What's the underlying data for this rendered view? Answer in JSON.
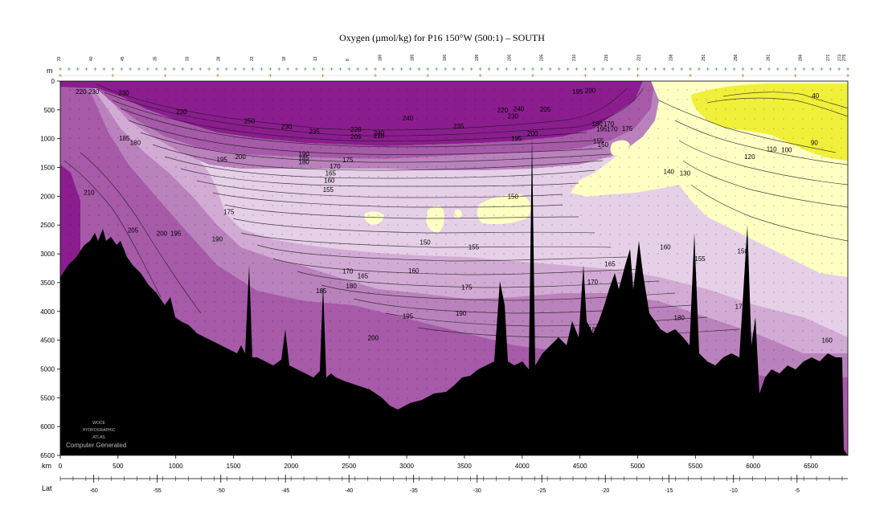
{
  "chart_data": {
    "type": "heatmap",
    "title": "Oxygen (µmol/kg) for P16 150°W (500:1) – SOUTH",
    "depth_unit": "m",
    "distance_unit": "km",
    "lat_label": "Lat",
    "depth_range": [
      0,
      6500
    ],
    "distance_range": [
      0,
      6820
    ],
    "depth_ticks": [
      0,
      500,
      1000,
      1500,
      2000,
      2500,
      3000,
      3500,
      4000,
      4500,
      5000,
      5500,
      6000,
      6500
    ],
    "distance_ticks": [
      0,
      500,
      1000,
      1500,
      2000,
      2500,
      3000,
      3500,
      4000,
      4500,
      5000,
      5500,
      6000,
      6500
    ],
    "lat_ticks": [
      {
        "km": 290,
        "label": "-60"
      },
      {
        "km": 840,
        "label": "-55"
      },
      {
        "km": 1390,
        "label": "-50"
      },
      {
        "km": 1950,
        "label": "-45"
      },
      {
        "km": 2500,
        "label": "-40"
      },
      {
        "km": 3060,
        "label": "-35"
      },
      {
        "km": 3610,
        "label": "-30"
      },
      {
        "km": 4170,
        "label": "-25"
      },
      {
        "km": 4720,
        "label": "-20"
      },
      {
        "km": 5270,
        "label": "-15"
      },
      {
        "km": 5830,
        "label": "-10"
      },
      {
        "km": 6380,
        "label": "-5"
      }
    ],
    "station_labels": [
      {
        "km": 0,
        "label": "33"
      },
      {
        "km": 280,
        "label": "40"
      },
      {
        "km": 550,
        "label": "45"
      },
      {
        "km": 830,
        "label": "35"
      },
      {
        "km": 1110,
        "label": "33"
      },
      {
        "km": 1380,
        "label": "28"
      },
      {
        "km": 1670,
        "label": "23"
      },
      {
        "km": 1950,
        "label": "18"
      },
      {
        "km": 2220,
        "label": "13"
      },
      {
        "km": 2500,
        "label": "8"
      },
      {
        "km": 2780,
        "label": "180"
      },
      {
        "km": 3060,
        "label": "185"
      },
      {
        "km": 3340,
        "label": "190"
      },
      {
        "km": 3620,
        "label": "195"
      },
      {
        "km": 3900,
        "label": "200"
      },
      {
        "km": 4180,
        "label": "205"
      },
      {
        "km": 4460,
        "label": "210"
      },
      {
        "km": 4740,
        "label": "215"
      },
      {
        "km": 5020,
        "label": "221"
      },
      {
        "km": 5300,
        "label": "238"
      },
      {
        "km": 5580,
        "label": "251"
      },
      {
        "km": 5860,
        "label": "256"
      },
      {
        "km": 6140,
        "label": "261"
      },
      {
        "km": 6420,
        "label": "266"
      },
      {
        "km": 6660,
        "label": "271"
      },
      {
        "km": 6760,
        "label": "273"
      },
      {
        "km": 6800,
        "label": "275"
      }
    ],
    "contour_labels": [
      {
        "km": 180,
        "depth": 180,
        "value": "220"
      },
      {
        "km": 290,
        "depth": 180,
        "value": "230"
      },
      {
        "km": 550,
        "depth": 200,
        "value": "230"
      },
      {
        "km": 1050,
        "depth": 530,
        "value": "230"
      },
      {
        "km": 1640,
        "depth": 690,
        "value": "250"
      },
      {
        "km": 1960,
        "depth": 790,
        "value": "230"
      },
      {
        "km": 2200,
        "depth": 870,
        "value": "235"
      },
      {
        "km": 2560,
        "depth": 840,
        "value": "220"
      },
      {
        "km": 2760,
        "depth": 900,
        "value": "240"
      },
      {
        "km": 2560,
        "depth": 960,
        "value": "205"
      },
      {
        "km": 2760,
        "depth": 950,
        "value": "210"
      },
      {
        "km": 3010,
        "depth": 640,
        "value": "240"
      },
      {
        "km": 3450,
        "depth": 780,
        "value": "235"
      },
      {
        "km": 3830,
        "depth": 500,
        "value": "220"
      },
      {
        "km": 3970,
        "depth": 480,
        "value": "240"
      },
      {
        "km": 3920,
        "depth": 610,
        "value": "230"
      },
      {
        "km": 4200,
        "depth": 490,
        "value": "205"
      },
      {
        "km": 4480,
        "depth": 180,
        "value": "195"
      },
      {
        "km": 4590,
        "depth": 160,
        "value": "200"
      },
      {
        "km": 4090,
        "depth": 910,
        "value": "200"
      },
      {
        "km": 3950,
        "depth": 1000,
        "value": "195"
      },
      {
        "km": 4650,
        "depth": 740,
        "value": "180"
      },
      {
        "km": 4690,
        "depth": 830,
        "value": "195"
      },
      {
        "km": 4750,
        "depth": 740,
        "value": "170"
      },
      {
        "km": 4780,
        "depth": 830,
        "value": "170"
      },
      {
        "km": 4910,
        "depth": 820,
        "value": "175"
      },
      {
        "km": 4660,
        "depth": 1040,
        "value": "155"
      },
      {
        "km": 4700,
        "depth": 1100,
        "value": "150"
      },
      {
        "km": 555,
        "depth": 990,
        "value": "185"
      },
      {
        "km": 650,
        "depth": 1070,
        "value": "180"
      },
      {
        "km": 1560,
        "depth": 1310,
        "value": "200"
      },
      {
        "km": 1400,
        "depth": 1360,
        "value": "195"
      },
      {
        "km": 2110,
        "depth": 1260,
        "value": "190"
      },
      {
        "km": 2110,
        "depth": 1330,
        "value": "185"
      },
      {
        "km": 2110,
        "depth": 1400,
        "value": "180"
      },
      {
        "km": 2490,
        "depth": 1370,
        "value": "175"
      },
      {
        "km": 2380,
        "depth": 1480,
        "value": "170"
      },
      {
        "km": 2340,
        "depth": 1600,
        "value": "165"
      },
      {
        "km": 2330,
        "depth": 1720,
        "value": "160"
      },
      {
        "km": 2320,
        "depth": 1880,
        "value": "155"
      },
      {
        "km": 250,
        "depth": 1930,
        "value": "210"
      },
      {
        "km": 630,
        "depth": 2590,
        "value": "205"
      },
      {
        "km": 880,
        "depth": 2640,
        "value": "200"
      },
      {
        "km": 1000,
        "depth": 2640,
        "value": "195"
      },
      {
        "km": 1360,
        "depth": 2740,
        "value": "190"
      },
      {
        "km": 1460,
        "depth": 2270,
        "value": "175"
      },
      {
        "km": 3160,
        "depth": 2800,
        "value": "150"
      },
      {
        "km": 3580,
        "depth": 2880,
        "value": "155"
      },
      {
        "km": 3920,
        "depth": 2000,
        "value": "150"
      },
      {
        "km": 3060,
        "depth": 3290,
        "value": "160"
      },
      {
        "km": 2490,
        "depth": 3300,
        "value": "170"
      },
      {
        "km": 2620,
        "depth": 3380,
        "value": "165"
      },
      {
        "km": 2520,
        "depth": 3560,
        "value": "180"
      },
      {
        "km": 2260,
        "depth": 3640,
        "value": "185"
      },
      {
        "km": 3520,
        "depth": 3580,
        "value": "175"
      },
      {
        "km": 3010,
        "depth": 4080,
        "value": "195"
      },
      {
        "km": 3470,
        "depth": 4030,
        "value": "190"
      },
      {
        "km": 2710,
        "depth": 4460,
        "value": "200"
      },
      {
        "km": 4760,
        "depth": 3170,
        "value": "165"
      },
      {
        "km": 4610,
        "depth": 3490,
        "value": "170"
      },
      {
        "km": 5240,
        "depth": 2880,
        "value": "160"
      },
      {
        "km": 5540,
        "depth": 3080,
        "value": "155"
      },
      {
        "km": 5910,
        "depth": 2950,
        "value": "150"
      },
      {
        "km": 5270,
        "depth": 1570,
        "value": "140"
      },
      {
        "km": 5410,
        "depth": 1600,
        "value": "130"
      },
      {
        "km": 5970,
        "depth": 1310,
        "value": "120"
      },
      {
        "km": 6160,
        "depth": 1180,
        "value": "110"
      },
      {
        "km": 6290,
        "depth": 1190,
        "value": "100"
      },
      {
        "km": 6530,
        "depth": 1070,
        "value": "90"
      },
      {
        "km": 6540,
        "depth": 250,
        "value": "40"
      },
      {
        "km": 5890,
        "depth": 3910,
        "value": "175"
      },
      {
        "km": 5360,
        "depth": 4110,
        "value": "180"
      },
      {
        "km": 4620,
        "depth": 4310,
        "value": "185"
      },
      {
        "km": 6640,
        "depth": 4500,
        "value": "160"
      }
    ],
    "logo_lines": [
      "WOCE",
      "HYDROGRAPHIC",
      "ATLAS"
    ],
    "footer_text": "Computer Generated",
    "colors": {
      "band_240_plus": "#8b1d8e",
      "band_200_240": "#a65aa8",
      "band_180_200": "#ba82bc",
      "band_160_180": "#d2abd4",
      "band_140_160": "#e6d0e8",
      "band_below_140": "#ffffc4",
      "band_low_40_100": "#f0f03a",
      "bathymetry": "#000000"
    }
  }
}
